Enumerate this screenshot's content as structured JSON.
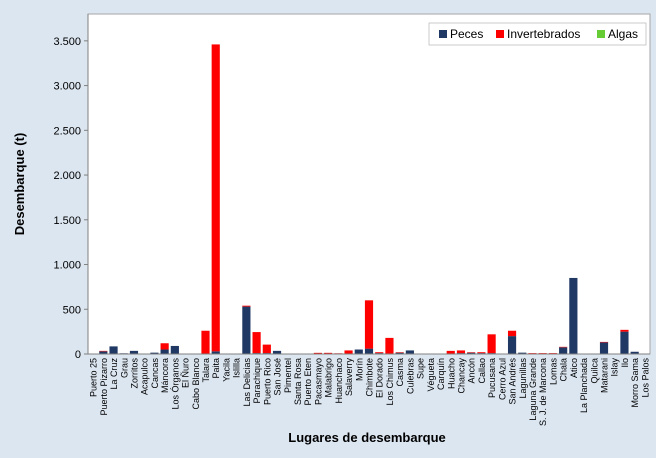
{
  "chart_data": {
    "type": "bar",
    "stacked": true,
    "title": "",
    "xlabel": "Lugares de desembarque",
    "ylabel": "Desembarque (t)",
    "ylim": [
      0,
      3800
    ],
    "yticks": [
      0,
      500,
      1000,
      1500,
      2000,
      2500,
      3000,
      3500
    ],
    "ytick_labels": [
      "0",
      "500",
      "1.000",
      "1.500",
      "2.000",
      "2.500",
      "3.000",
      "3.500"
    ],
    "grid": false,
    "legend_position": "top-right",
    "categories": [
      "Puerto 25",
      "Puerto Pizarro",
      "La Cruz",
      "Grau",
      "Zorritos",
      "Acapulco",
      "Cancas",
      "Máncora",
      "Los Órganos",
      "El Ñuro",
      "Cabo Blanco",
      "Talara",
      "Paita",
      "Yacila",
      "Islilla",
      "Las Delicias",
      "Parachique",
      "Puerto Rico",
      "San José",
      "Pimentel",
      "Santa Rosa",
      "Puerto Eten",
      "Pacasmayo",
      "Malabrigo",
      "Huanchaco",
      "Salaverry",
      "Morín",
      "Chimbote",
      "El Dorado",
      "Los Chimus",
      "Casma",
      "Culebras",
      "Supe",
      "Végueta",
      "Carquín",
      "Huacho",
      "Chancay",
      "Ancón",
      "Callao",
      "Pucusana",
      "Cerro Azul",
      "San Andrés",
      "Lagunillas",
      "Laguna Grande",
      "S. J. de Marcona",
      "Lomas",
      "Chala",
      "Atico",
      "La Planchada",
      "Quilca",
      "Matarani",
      "Islay",
      "Ilo",
      "Morro Sama",
      "Los Palos"
    ],
    "series": [
      {
        "name": "Peces",
        "color": "#1F3864",
        "values": [
          3,
          30,
          85,
          8,
          35,
          5,
          15,
          50,
          90,
          5,
          3,
          5,
          30,
          3,
          3,
          530,
          10,
          10,
          35,
          3,
          3,
          5,
          3,
          3,
          3,
          5,
          50,
          60,
          10,
          5,
          15,
          40,
          3,
          3,
          5,
          5,
          10,
          15,
          10,
          10,
          3,
          200,
          15,
          5,
          5,
          5,
          75,
          850,
          3,
          3,
          130,
          5,
          250,
          25,
          3
        ]
      },
      {
        "name": "Invertebrados",
        "color": "#FF0000",
        "values": [
          0,
          5,
          0,
          0,
          0,
          0,
          0,
          70,
          0,
          0,
          0,
          255,
          3430,
          0,
          0,
          10,
          235,
          95,
          0,
          0,
          0,
          0,
          10,
          10,
          5,
          35,
          0,
          540,
          10,
          175,
          5,
          0,
          0,
          0,
          0,
          30,
          30,
          5,
          10,
          210,
          0,
          60,
          0,
          5,
          5,
          5,
          5,
          0,
          0,
          0,
          5,
          0,
          20,
          0,
          0
        ]
      },
      {
        "name": "Algas",
        "color": "#66CC33",
        "values": [
          0,
          0,
          0,
          0,
          0,
          0,
          0,
          0,
          0,
          0,
          0,
          0,
          0,
          0,
          0,
          0,
          0,
          0,
          0,
          0,
          0,
          0,
          0,
          0,
          0,
          0,
          0,
          0,
          0,
          0,
          0,
          0,
          0,
          0,
          0,
          0,
          0,
          0,
          0,
          0,
          0,
          0,
          0,
          0,
          0,
          0,
          0,
          0,
          0,
          0,
          0,
          0,
          0,
          0,
          0
        ]
      }
    ]
  }
}
